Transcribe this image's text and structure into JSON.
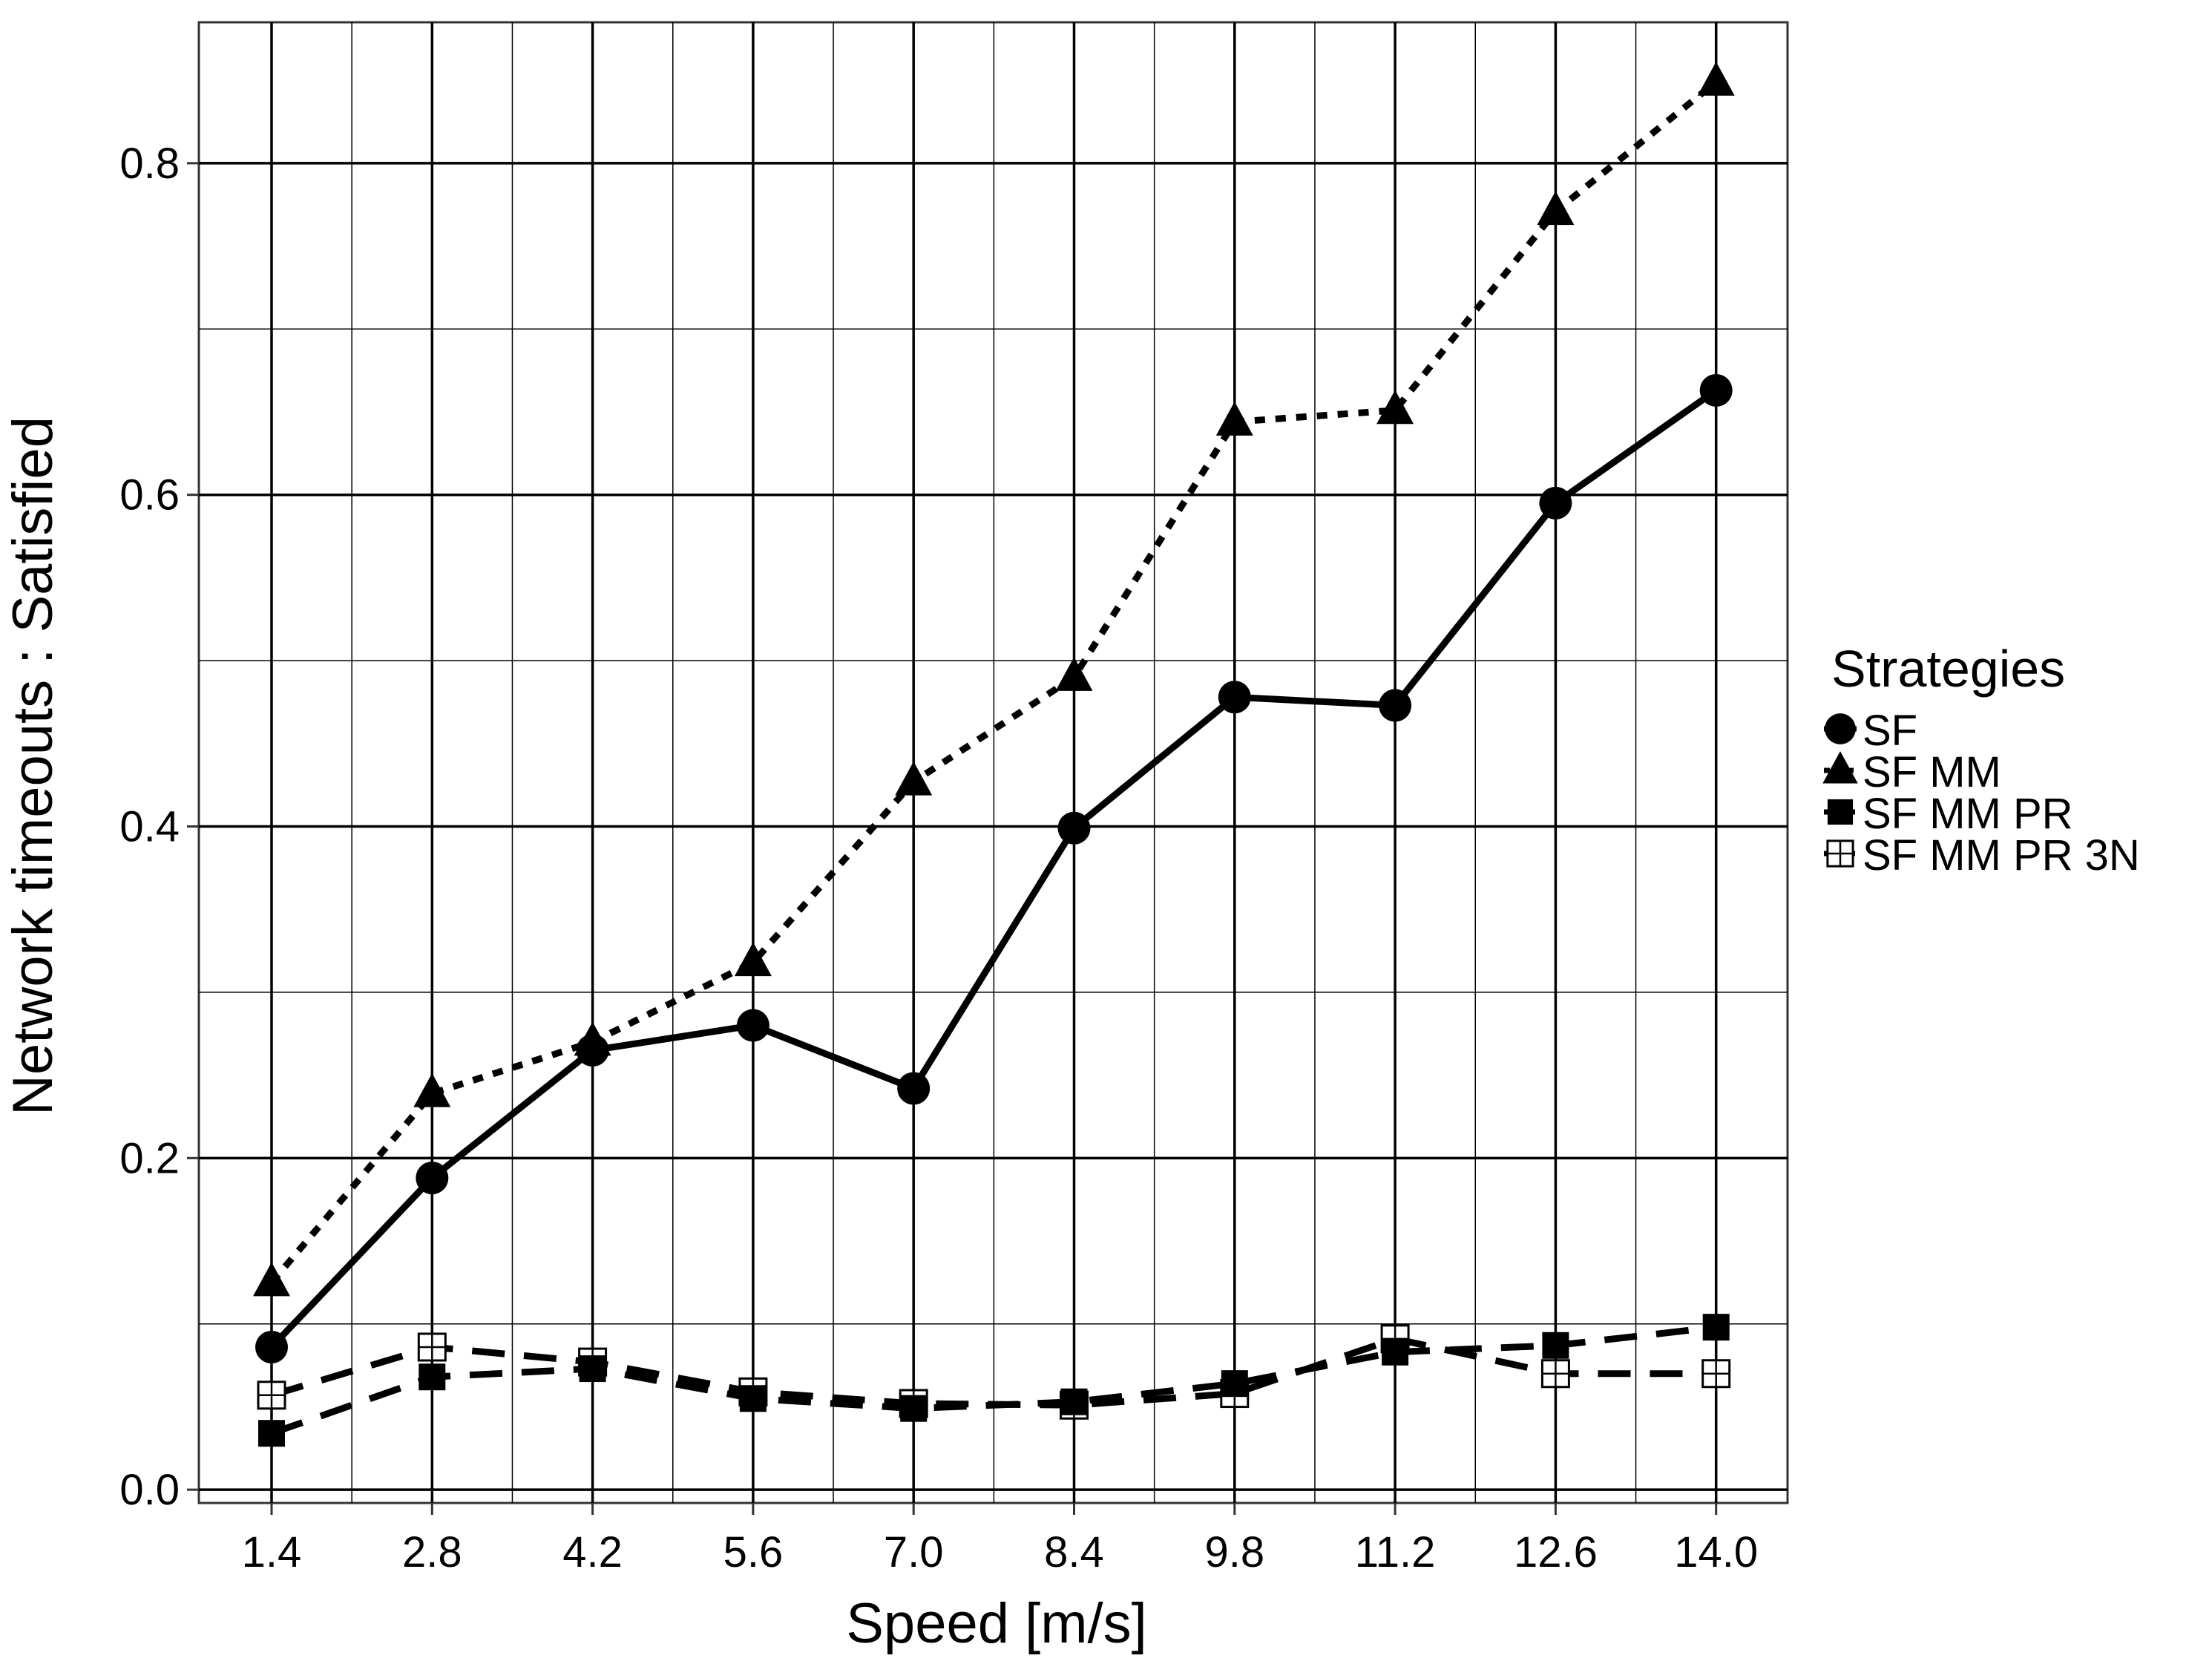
{
  "chart_data": {
    "type": "line",
    "title": "",
    "xlabel": "Speed [m/s]",
    "ylabel": "Network timeouts : Satisfied",
    "categories": [
      "1.4",
      "2.8",
      "4.2",
      "5.6",
      "7.0",
      "8.4",
      "9.8",
      "11.2",
      "12.6",
      "14.0"
    ],
    "ylim": [
      -0.008,
      0.885
    ],
    "yticks": [
      "0.0",
      "0.2",
      "0.4",
      "0.6",
      "0.8"
    ],
    "grid": true,
    "legend": {
      "title": "Strategies",
      "position": "right"
    },
    "series": [
      {
        "name": "SF",
        "marker": "circle",
        "line": "solid",
        "values": [
          0.086,
          0.188,
          0.265,
          0.28,
          0.242,
          0.399,
          0.478,
          0.473,
          0.595,
          0.663
        ]
      },
      {
        "name": "SF MM",
        "marker": "triangle",
        "line": "dotted",
        "values": [
          0.125,
          0.239,
          0.27,
          0.318,
          0.427,
          0.49,
          0.644,
          0.651,
          0.771,
          0.849
        ]
      },
      {
        "name": "SF MM PR",
        "marker": "square-filled",
        "line": "dashed",
        "values": [
          0.034,
          0.068,
          0.073,
          0.055,
          0.049,
          0.053,
          0.064,
          0.083,
          0.087,
          0.098
        ]
      },
      {
        "name": "SF MM PR 3N",
        "marker": "square-crossed",
        "line": "dashed",
        "values": [
          0.057,
          0.086,
          0.077,
          0.059,
          0.052,
          0.051,
          0.058,
          0.091,
          0.07,
          0.07
        ]
      }
    ]
  }
}
